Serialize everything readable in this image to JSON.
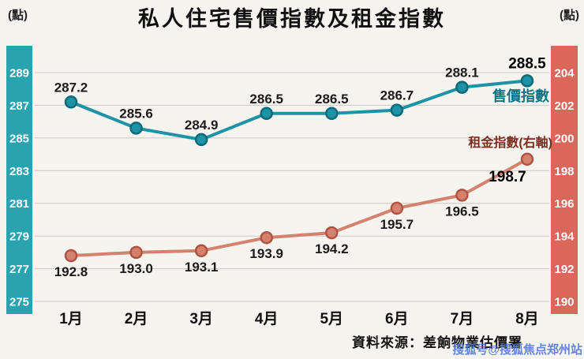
{
  "title": "私人住宅售價指數及租金指數",
  "left_axis_unit": "(點)",
  "right_axis_unit": "(點)",
  "footer": {
    "source": "資料來源：差餉物業估價署",
    "watermark": "搜狐号@搜狐焦点郑州站"
  },
  "chart_data": {
    "type": "line",
    "categories": [
      "1月",
      "2月",
      "3月",
      "4月",
      "5月",
      "6月",
      "7月",
      "8月"
    ],
    "series": [
      {
        "name": "售價指數",
        "axis": "left",
        "color": "#1d93a5",
        "point_ring_color": "#0c6a7a",
        "label_color": "#0d7285",
        "values": [
          287.2,
          285.6,
          284.9,
          286.5,
          286.5,
          286.7,
          288.1,
          288.5
        ]
      },
      {
        "name": "租金指數(右軸)",
        "axis": "right",
        "color": "#d4826f",
        "point_ring_color": "#b25240",
        "label_color": "#7c2d1e",
        "values": [
          192.8,
          193.0,
          193.1,
          193.9,
          194.2,
          195.7,
          196.5,
          198.7
        ]
      }
    ],
    "left_axis": {
      "ticks": [
        289,
        287,
        285,
        283,
        281,
        279,
        277,
        275
      ],
      "min": 275,
      "max": 289,
      "color": "#2aa3b0"
    },
    "right_axis": {
      "ticks": [
        204,
        202,
        200,
        198,
        196,
        194,
        192,
        190
      ],
      "min": 190,
      "max": 204,
      "color": "#d9685a"
    },
    "grid": true,
    "legend_position": "inline-right"
  }
}
